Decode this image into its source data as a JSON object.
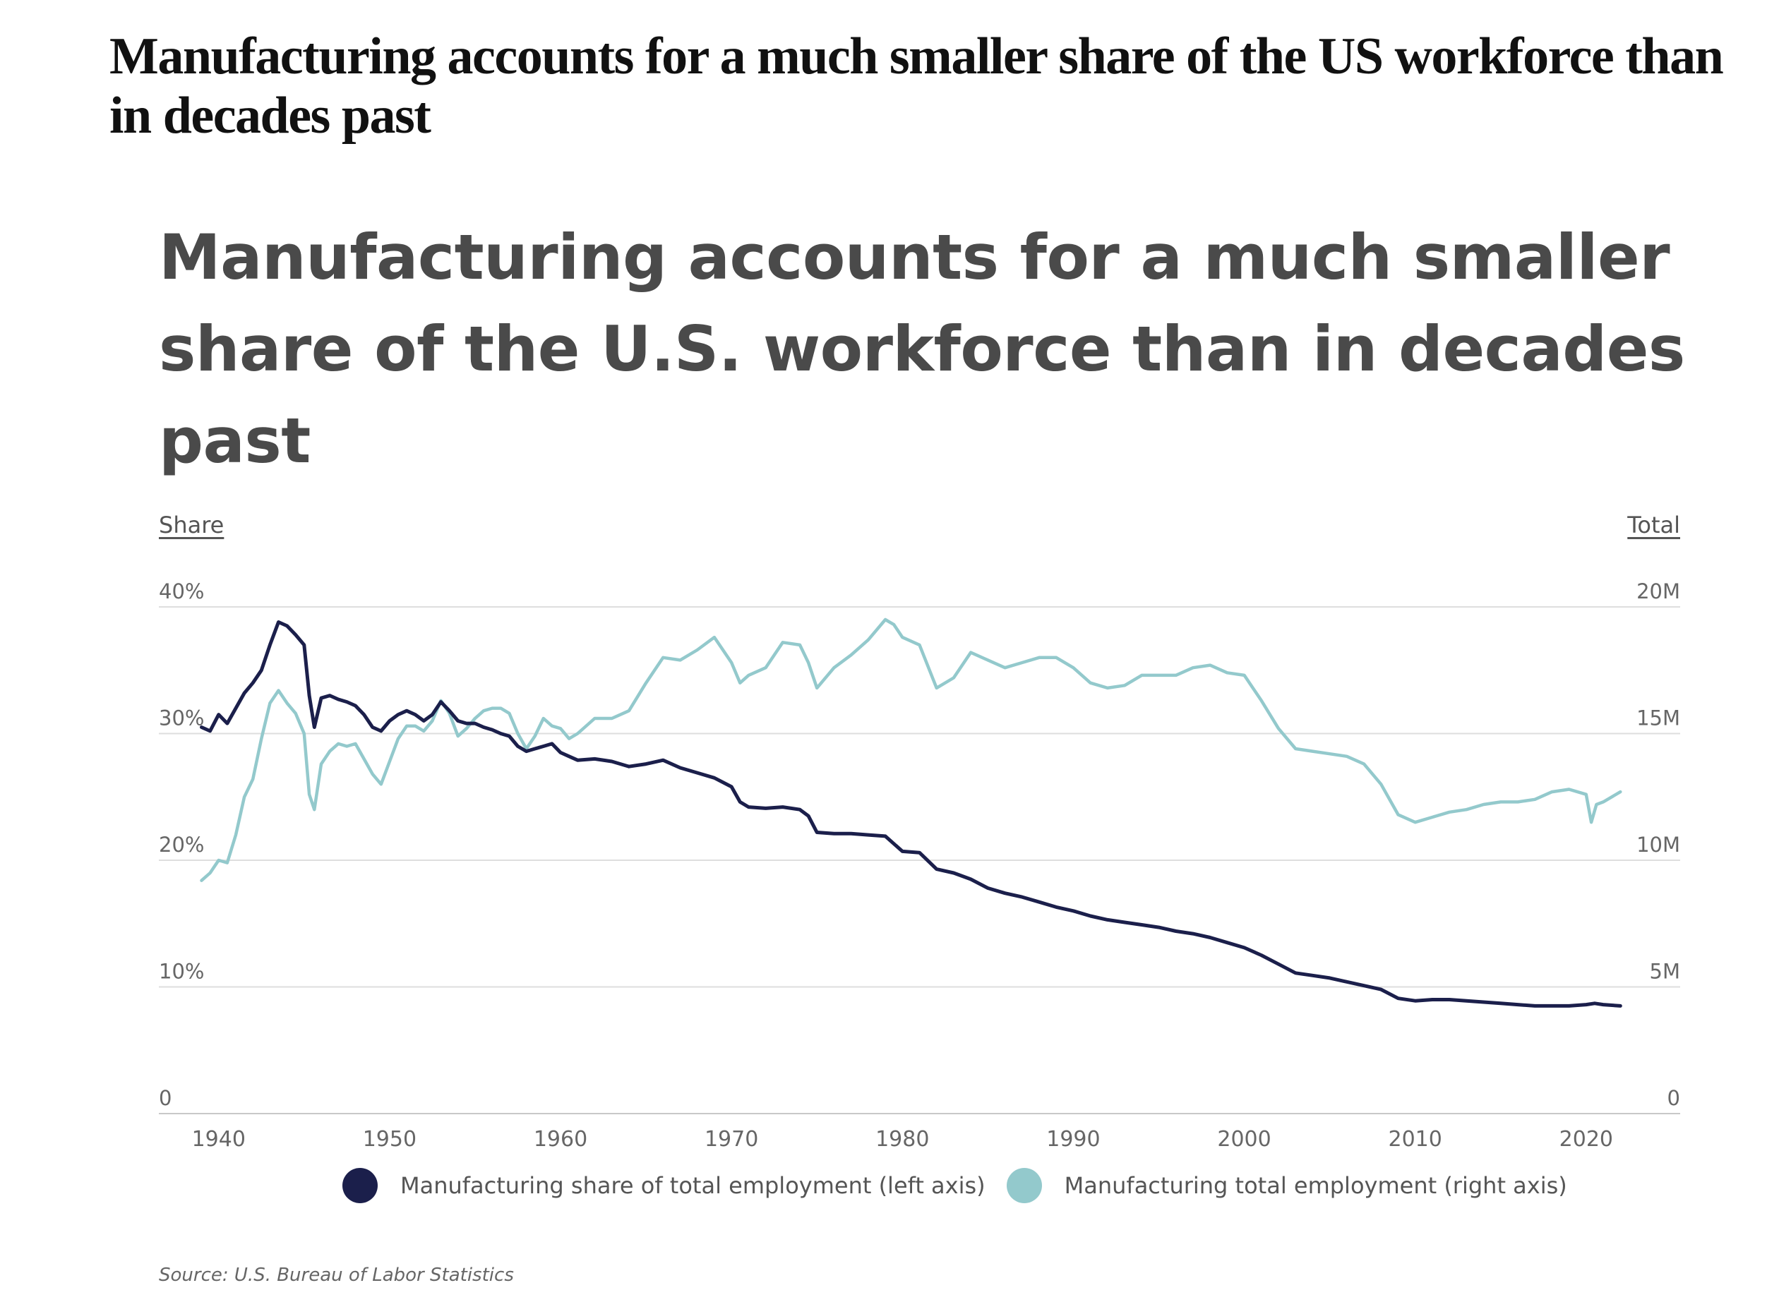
{
  "headline": "Manufacturing accounts for a much smaller share of the US workforce than in decades past",
  "chart_data": {
    "type": "line",
    "title": "Manufacturing accounts for a much smaller share of the U.S. workforce than in decades past",
    "left_axis": {
      "title": "Share",
      "range": [
        0,
        40
      ],
      "ticks": [
        0,
        10,
        20,
        30,
        40
      ],
      "tick_labels": [
        "0",
        "10%",
        "20%",
        "30%",
        "40%"
      ]
    },
    "right_axis": {
      "title": "Total",
      "range": [
        0,
        20
      ],
      "ticks": [
        0,
        5,
        10,
        15,
        20
      ],
      "tick_labels": [
        "0",
        "5M",
        "10M",
        "15M",
        "20M"
      ]
    },
    "x_axis": {
      "range": [
        1936.5,
        2025.5
      ],
      "ticks": [
        1940,
        1950,
        1960,
        1970,
        1980,
        1990,
        2000,
        2010,
        2020
      ],
      "tick_labels": [
        "1940",
        "1950",
        "1960",
        "1970",
        "1980",
        "1990",
        "2000",
        "2010",
        "2020"
      ]
    },
    "grid": true,
    "legend_position": "bottom",
    "series": [
      {
        "name": "Manufacturing share of total employment (left axis)",
        "axis": "left",
        "color": "#1b1f4b",
        "x": [
          1939.0,
          1939.5,
          1940.0,
          1940.5,
          1941.0,
          1941.5,
          1942.0,
          1942.5,
          1943.0,
          1943.5,
          1944.0,
          1944.5,
          1945.0,
          1945.3,
          1945.6,
          1946.0,
          1946.5,
          1947.0,
          1947.5,
          1948.0,
          1948.5,
          1949.0,
          1949.5,
          1950.0,
          1950.5,
          1951.0,
          1951.5,
          1952.0,
          1952.5,
          1953.0,
          1953.5,
          1954.0,
          1954.5,
          1955.0,
          1955.5,
          1956.0,
          1956.5,
          1957.0,
          1957.5,
          1958.0,
          1958.5,
          1959.0,
          1959.5,
          1960.0,
          1960.5,
          1961.0,
          1962.0,
          1963.0,
          1964.0,
          1965.0,
          1966.0,
          1967.0,
          1968.0,
          1969.0,
          1970.0,
          1970.5,
          1971.0,
          1972.0,
          1973.0,
          1974.0,
          1974.5,
          1975.0,
          1976.0,
          1977.0,
          1978.0,
          1979.0,
          1980.0,
          1981.0,
          1982.0,
          1983.0,
          1984.0,
          1985.0,
          1986.0,
          1987.0,
          1988.0,
          1989.0,
          1990.0,
          1991.0,
          1992.0,
          1993.0,
          1994.0,
          1995.0,
          1996.0,
          1997.0,
          1998.0,
          1999.0,
          2000.0,
          2001.0,
          2002.0,
          2003.0,
          2004.0,
          2005.0,
          2006.0,
          2007.0,
          2008.0,
          2009.0,
          2010.0,
          2011.0,
          2012.0,
          2013.0,
          2014.0,
          2015.0,
          2016.0,
          2017.0,
          2018.0,
          2019.0,
          2020.0,
          2020.5,
          2021.0,
          2022.0
        ],
        "values": [
          30.5,
          30.2,
          31.5,
          30.8,
          32.0,
          33.2,
          34.0,
          35.0,
          37.0,
          38.8,
          38.5,
          37.8,
          37.0,
          33.0,
          30.5,
          32.8,
          33.0,
          32.7,
          32.5,
          32.2,
          31.5,
          30.5,
          30.2,
          31.0,
          31.5,
          31.8,
          31.5,
          31.0,
          31.5,
          32.5,
          31.8,
          31.0,
          30.8,
          30.8,
          30.5,
          30.3,
          30.0,
          29.8,
          29.0,
          28.6,
          28.8,
          29.0,
          29.2,
          28.5,
          28.2,
          27.9,
          28.0,
          27.8,
          27.4,
          27.6,
          27.9,
          27.3,
          26.9,
          26.5,
          25.8,
          24.6,
          24.2,
          24.1,
          24.2,
          24.0,
          23.5,
          22.2,
          22.1,
          22.1,
          22.0,
          21.9,
          20.7,
          20.6,
          19.3,
          19.0,
          18.5,
          17.8,
          17.4,
          17.1,
          16.7,
          16.3,
          16.0,
          15.6,
          15.3,
          15.1,
          14.9,
          14.7,
          14.4,
          14.2,
          13.9,
          13.5,
          13.1,
          12.5,
          11.8,
          11.1,
          10.9,
          10.7,
          10.4,
          10.1,
          9.8,
          9.1,
          8.9,
          9.0,
          9.0,
          8.9,
          8.8,
          8.7,
          8.6,
          8.5,
          8.5,
          8.5,
          8.6,
          8.7,
          8.6,
          8.5
        ]
      },
      {
        "name": "Manufacturing total employment (right axis)",
        "axis": "right",
        "color": "#93c9cc",
        "x": [
          1939.0,
          1939.5,
          1940.0,
          1940.5,
          1941.0,
          1941.5,
          1942.0,
          1942.5,
          1943.0,
          1943.5,
          1944.0,
          1944.5,
          1945.0,
          1945.3,
          1945.6,
          1946.0,
          1946.5,
          1947.0,
          1947.5,
          1948.0,
          1948.5,
          1949.0,
          1949.5,
          1950.0,
          1950.5,
          1951.0,
          1951.5,
          1952.0,
          1952.5,
          1953.0,
          1953.5,
          1954.0,
          1954.5,
          1955.0,
          1955.5,
          1956.0,
          1956.5,
          1957.0,
          1957.5,
          1958.0,
          1958.5,
          1959.0,
          1959.5,
          1960.0,
          1960.5,
          1961.0,
          1962.0,
          1963.0,
          1964.0,
          1965.0,
          1966.0,
          1967.0,
          1968.0,
          1969.0,
          1970.0,
          1970.5,
          1971.0,
          1972.0,
          1973.0,
          1974.0,
          1974.5,
          1975.0,
          1976.0,
          1977.0,
          1978.0,
          1979.0,
          1979.5,
          1980.0,
          1981.0,
          1982.0,
          1983.0,
          1984.0,
          1985.0,
          1986.0,
          1987.0,
          1988.0,
          1989.0,
          1990.0,
          1991.0,
          1992.0,
          1993.0,
          1994.0,
          1995.0,
          1996.0,
          1997.0,
          1998.0,
          1999.0,
          2000.0,
          2001.0,
          2002.0,
          2003.0,
          2004.0,
          2005.0,
          2006.0,
          2007.0,
          2008.0,
          2009.0,
          2010.0,
          2011.0,
          2012.0,
          2013.0,
          2014.0,
          2015.0,
          2016.0,
          2017.0,
          2018.0,
          2019.0,
          2020.0,
          2020.3,
          2020.6,
          2021.0,
          2022.0
        ],
        "values": [
          9.2,
          9.5,
          10.0,
          9.9,
          11.0,
          12.5,
          13.2,
          14.8,
          16.2,
          16.7,
          16.2,
          15.8,
          15.0,
          12.6,
          12.0,
          13.8,
          14.3,
          14.6,
          14.5,
          14.6,
          14.0,
          13.4,
          13.0,
          13.9,
          14.8,
          15.3,
          15.3,
          15.1,
          15.5,
          16.3,
          15.8,
          14.9,
          15.2,
          15.6,
          15.9,
          16.0,
          16.0,
          15.8,
          15.0,
          14.4,
          14.9,
          15.6,
          15.3,
          15.2,
          14.8,
          15.0,
          15.6,
          15.6,
          15.9,
          17.0,
          18.0,
          17.9,
          18.3,
          18.8,
          17.8,
          17.0,
          17.3,
          17.6,
          18.6,
          18.5,
          17.8,
          16.8,
          17.6,
          18.1,
          18.7,
          19.5,
          19.3,
          18.8,
          18.5,
          16.8,
          17.2,
          18.2,
          17.9,
          17.6,
          17.8,
          18.0,
          18.0,
          17.6,
          17.0,
          16.8,
          16.9,
          17.3,
          17.3,
          17.3,
          17.6,
          17.7,
          17.4,
          17.3,
          16.3,
          15.2,
          14.4,
          14.3,
          14.2,
          14.1,
          13.8,
          13.0,
          11.8,
          11.5,
          11.7,
          11.9,
          12.0,
          12.2,
          12.3,
          12.3,
          12.4,
          12.7,
          12.8,
          12.6,
          11.5,
          12.2,
          12.3,
          12.7
        ]
      }
    ]
  },
  "legend": {
    "items": [
      {
        "label": "Manufacturing share of total employment (left axis)",
        "color": "#1b1f4b"
      },
      {
        "label": "Manufacturing total employment (right axis)",
        "color": "#93c9cc"
      }
    ]
  },
  "source": "Source:  U.S. Bureau of Labor Statistics"
}
